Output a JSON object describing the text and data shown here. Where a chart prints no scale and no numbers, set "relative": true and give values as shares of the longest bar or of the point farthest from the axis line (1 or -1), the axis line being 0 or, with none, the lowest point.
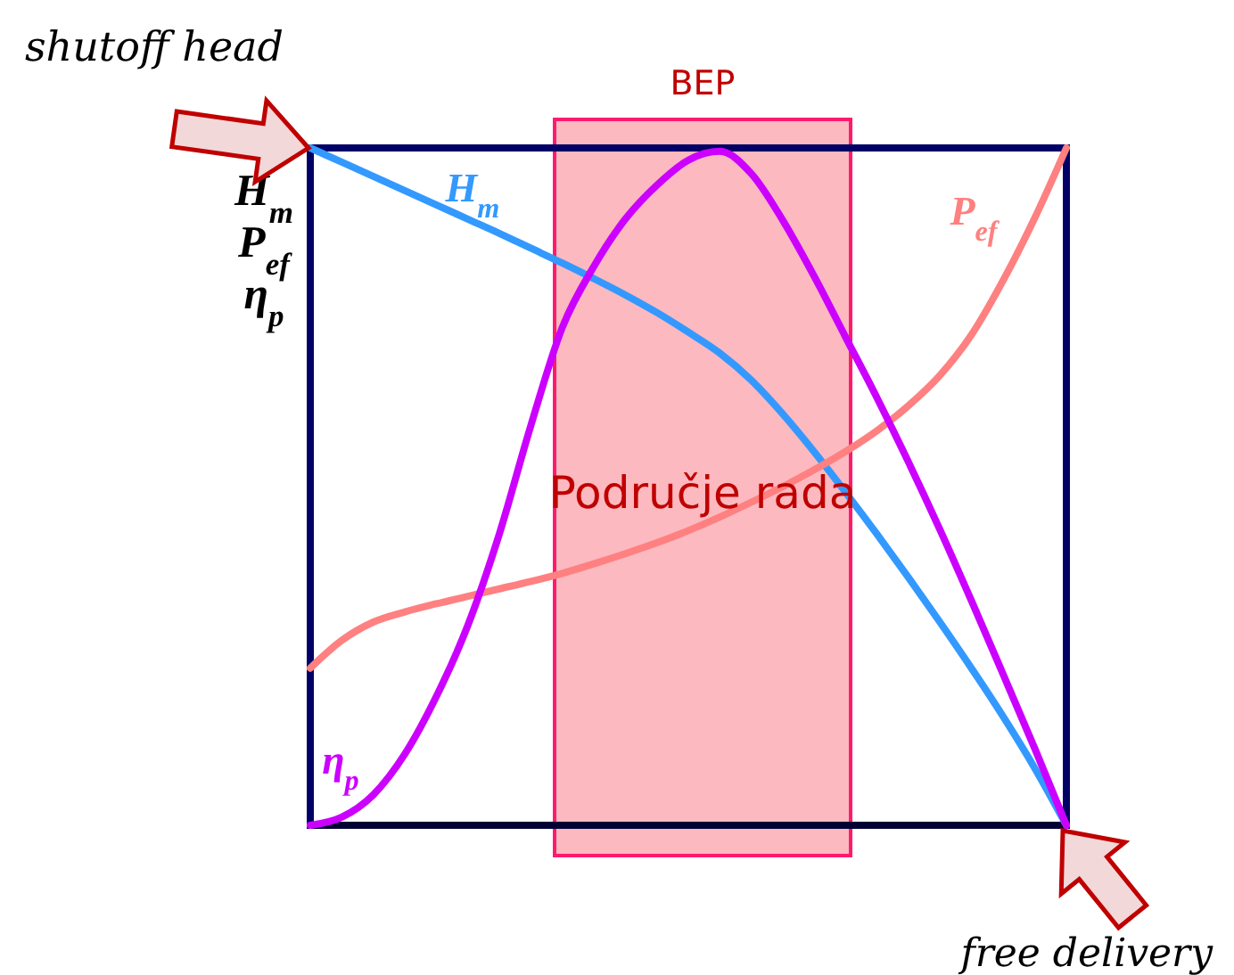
{
  "chart_data": {
    "type": "line",
    "relative": true,
    "ylabel": "H$_{m}$\nP$_{ef}$\nη$_{p}$",
    "categories": [
      null,
      null,
      null,
      null,
      null,
      null,
      null,
      null,
      null,
      null,
      null,
      null,
      null,
      null,
      null,
      null,
      null,
      null,
      null,
      null,
      null,
      null,
      null,
      null,
      null
    ],
    "series": [
      {
        "name": "H$_{m}$",
        "color": "#3399ff",
        "values": [
          1,
          0.979,
          0.958,
          0.937,
          0.916,
          0.895,
          0.874,
          0.852,
          0.83,
          0.807,
          0.783,
          0.757,
          0.728,
          0.697,
          0.657,
          0.607,
          0.551,
          0.491,
          0.429,
          0.365,
          0.299,
          0.231,
          0.16,
          0.084,
          0
        ]
      },
      {
        "name": "P$_{ef}$",
        "color": "#ff8080",
        "values": [
          0.232,
          0.273,
          0.3,
          0.315,
          0.327,
          0.338,
          0.349,
          0.36,
          0.372,
          0.386,
          0.401,
          0.417,
          0.435,
          0.455,
          0.477,
          0.5,
          0.525,
          0.552,
          0.583,
          0.62,
          0.665,
          0.725,
          0.805,
          0.897,
          1
        ]
      },
      {
        "name": "η$_{p}$",
        "color": "#cc00ff",
        "values": [
          0,
          0.012,
          0.045,
          0.105,
          0.19,
          0.295,
          0.43,
          0.59,
          0.735,
          0.825,
          0.895,
          0.945,
          0.982,
          0.995,
          0.962,
          0.893,
          0.81,
          0.72,
          0.63,
          0.535,
          0.435,
          0.33,
          0.222,
          0.113,
          0
        ]
      }
    ],
    "annotations": [
      "shutoff head",
      "BEP",
      "Područje rada",
      "free delivery"
    ]
  }
}
